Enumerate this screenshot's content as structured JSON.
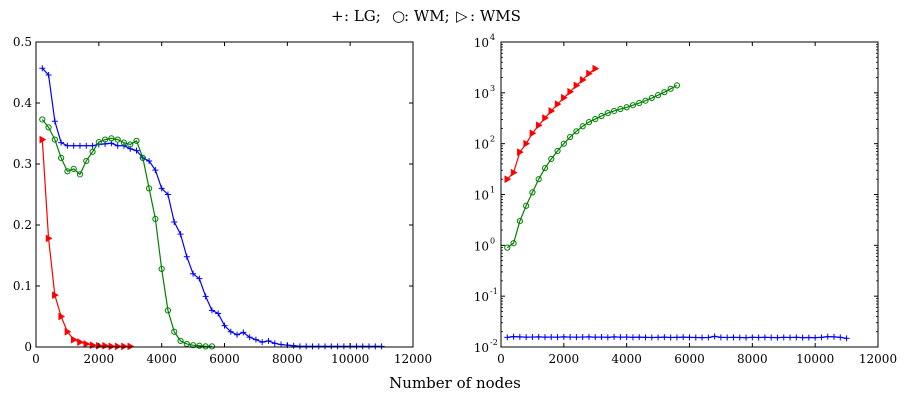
{
  "figure": {
    "legend": [
      {
        "marker": "plus",
        "color": "#0000ff",
        "symbol": "+",
        "label": ": LG;"
      },
      {
        "marker": "circle",
        "color": "#008000",
        "symbol": "○",
        "label": ": WM;"
      },
      {
        "marker": "triangle",
        "color": "#ff0000",
        "symbol": "▷",
        "label": ": WMS"
      }
    ],
    "xlabel": "Number of nodes"
  },
  "chart_data": [
    {
      "type": "line",
      "title": "",
      "xlabel": "",
      "ylabel": "",
      "xlim": [
        0,
        12000
      ],
      "ylim": [
        0,
        0.5
      ],
      "yscale": "linear",
      "xticks": [
        0,
        2000,
        4000,
        6000,
        8000,
        10000,
        12000
      ],
      "xticklabels": [
        "0",
        "2000",
        "4000",
        "6000",
        "8000",
        "10000",
        "12000"
      ],
      "yticks": [
        0,
        0.1,
        0.2,
        0.3,
        0.4,
        0.5
      ],
      "yticklabels": [
        "0",
        "0.1",
        "0.2",
        "0.3",
        "0.4",
        "0.5"
      ],
      "grid": false,
      "series": [
        {
          "name": "LG",
          "color": "#0000ff",
          "marker": "plus",
          "x": [
            200,
            400,
            600,
            800,
            1000,
            1200,
            1400,
            1600,
            1800,
            2000,
            2200,
            2400,
            2600,
            2800,
            3000,
            3200,
            3400,
            3600,
            3800,
            4000,
            4200,
            4400,
            4600,
            4800,
            5000,
            5200,
            5400,
            5600,
            5800,
            6000,
            6200,
            6400,
            6600,
            6800,
            7000,
            7200,
            7400,
            7600,
            7800,
            8000,
            8200,
            8400,
            8600,
            8800,
            9000,
            9200,
            9400,
            9600,
            9800,
            10000,
            10200,
            10400,
            10600,
            10800,
            11000
          ],
          "y": [
            0.457,
            0.446,
            0.37,
            0.335,
            0.33,
            0.33,
            0.33,
            0.33,
            0.33,
            0.332,
            0.333,
            0.334,
            0.33,
            0.33,
            0.325,
            0.322,
            0.31,
            0.305,
            0.29,
            0.26,
            0.25,
            0.205,
            0.185,
            0.148,
            0.12,
            0.112,
            0.083,
            0.06,
            0.055,
            0.035,
            0.025,
            0.02,
            0.024,
            0.016,
            0.012,
            0.008,
            0.01,
            0.006,
            0.004,
            0.003,
            0.002,
            0.001,
            0.001,
            0.001,
            0.001,
            0.001,
            0.001,
            0.001,
            0.001,
            0.001,
            0.001,
            0.001,
            0.001,
            0.001,
            0.001
          ]
        },
        {
          "name": "WM",
          "color": "#008000",
          "marker": "circle",
          "x": [
            200,
            400,
            600,
            800,
            1000,
            1200,
            1400,
            1600,
            1800,
            2000,
            2200,
            2400,
            2600,
            2800,
            3000,
            3200,
            3400,
            3600,
            3800,
            4000,
            4200,
            4400,
            4600,
            4800,
            5000,
            5200,
            5400,
            5600
          ],
          "y": [
            0.373,
            0.36,
            0.34,
            0.31,
            0.288,
            0.292,
            0.283,
            0.305,
            0.32,
            0.336,
            0.34,
            0.342,
            0.34,
            0.335,
            0.332,
            0.338,
            0.31,
            0.26,
            0.21,
            0.128,
            0.06,
            0.025,
            0.01,
            0.005,
            0.003,
            0.002,
            0.001,
            0.001
          ]
        },
        {
          "name": "WMS",
          "color": "#ff0000",
          "marker": "triangle",
          "x": [
            200,
            400,
            600,
            800,
            1000,
            1200,
            1400,
            1600,
            1800,
            2000,
            2200,
            2400,
            2600,
            2800,
            3000
          ],
          "y": [
            0.34,
            0.178,
            0.085,
            0.05,
            0.025,
            0.012,
            0.008,
            0.005,
            0.003,
            0.002,
            0.002,
            0.001,
            0.001,
            0.001,
            0.001
          ]
        }
      ]
    },
    {
      "type": "line",
      "title": "",
      "xlabel": "",
      "ylabel": "",
      "xlim": [
        0,
        12000
      ],
      "ylim": [
        0.01,
        10000
      ],
      "yscale": "log",
      "xticks": [
        0,
        2000,
        4000,
        6000,
        8000,
        10000,
        12000
      ],
      "xticklabels": [
        "0",
        "2000",
        "4000",
        "6000",
        "8000",
        "10000",
        "12000"
      ],
      "yticks": [
        0.01,
        0.1,
        1,
        10,
        100,
        1000,
        10000
      ],
      "ytick_base": "10",
      "ytick_exponents": [
        "-2",
        "-1",
        "0",
        "1",
        "2",
        "3",
        "4"
      ],
      "grid": false,
      "series": [
        {
          "name": "LG",
          "color": "#0000ff",
          "marker": "plus",
          "x": [
            200,
            400,
            600,
            800,
            1000,
            1200,
            1400,
            1600,
            1800,
            2000,
            2200,
            2400,
            2600,
            2800,
            3000,
            3200,
            3400,
            3600,
            3800,
            4000,
            4200,
            4400,
            4600,
            4800,
            5000,
            5200,
            5400,
            5600,
            5800,
            6000,
            6200,
            6400,
            6600,
            6800,
            7000,
            7200,
            7400,
            7600,
            7800,
            8000,
            8200,
            8400,
            8600,
            8800,
            9000,
            9200,
            9400,
            9600,
            9800,
            10000,
            10200,
            10400,
            10600,
            10800,
            11000
          ],
          "y": [
            0.0155,
            0.016,
            0.0158,
            0.0156,
            0.0157,
            0.0158,
            0.0156,
            0.0157,
            0.0156,
            0.0158,
            0.0157,
            0.0156,
            0.0157,
            0.0158,
            0.0156,
            0.0157,
            0.0155,
            0.0158,
            0.0156,
            0.0157,
            0.0155,
            0.0156,
            0.0155,
            0.0154,
            0.0155,
            0.0156,
            0.0154,
            0.0155,
            0.0156,
            0.0155,
            0.0154,
            0.0153,
            0.0154,
            0.0162,
            0.0155,
            0.0154,
            0.0155,
            0.0154,
            0.0153,
            0.0155,
            0.0154,
            0.0155,
            0.0154,
            0.0153,
            0.0155,
            0.0154,
            0.0155,
            0.0153,
            0.0154,
            0.0153,
            0.0155,
            0.016,
            0.0158,
            0.0155,
            0.0148
          ]
        },
        {
          "name": "WM",
          "color": "#008000",
          "marker": "circle",
          "x": [
            200,
            400,
            600,
            800,
            1000,
            1200,
            1400,
            1600,
            1800,
            2000,
            2200,
            2400,
            2600,
            2800,
            3000,
            3200,
            3400,
            3600,
            3800,
            4000,
            4200,
            4400,
            4600,
            4800,
            5000,
            5200,
            5400,
            5600
          ],
          "y": [
            0.9,
            1.1,
            3,
            6,
            11,
            20,
            33,
            50,
            72,
            100,
            135,
            175,
            220,
            265,
            305,
            350,
            400,
            440,
            480,
            520,
            570,
            630,
            700,
            790,
            900,
            1030,
            1200,
            1400
          ]
        },
        {
          "name": "WMS",
          "color": "#ff0000",
          "marker": "triangle",
          "x": [
            200,
            400,
            600,
            800,
            1000,
            1200,
            1400,
            1600,
            1800,
            2000,
            2200,
            2400,
            2600,
            2800,
            3000
          ],
          "y": [
            20,
            27,
            68,
            100,
            160,
            230,
            320,
            440,
            600,
            800,
            1050,
            1400,
            1800,
            2400,
            3000
          ]
        }
      ]
    }
  ]
}
